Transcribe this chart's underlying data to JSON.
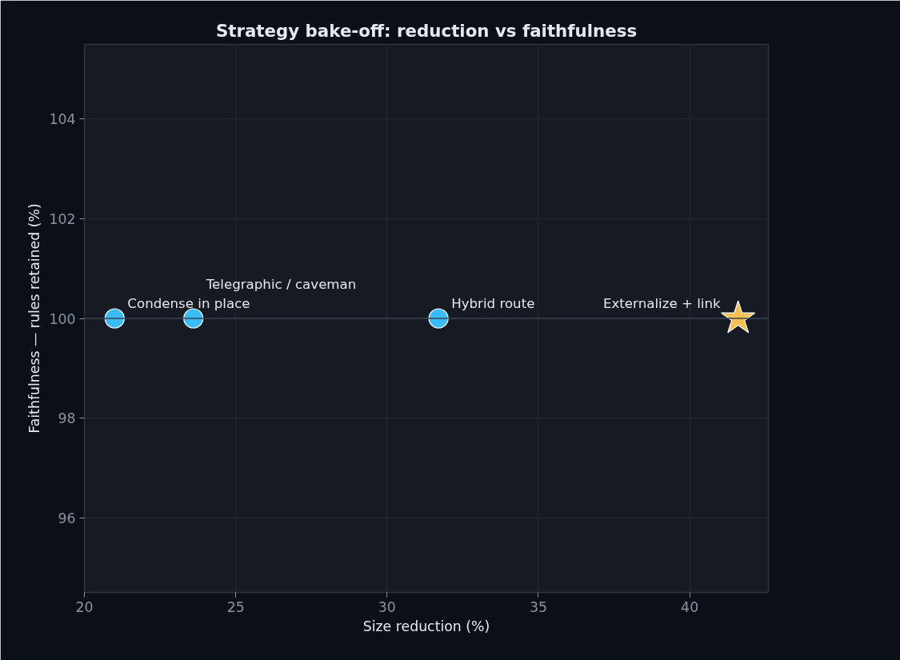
{
  "chart_data": {
    "type": "scatter",
    "title": "Strategy bake-off: reduction vs faithfulness",
    "xlabel": "Size reduction (%)",
    "ylabel": "Faithfulness — rules retained (%)",
    "series": [
      {
        "color": "#38bdf8",
        "marker": "circle",
        "x": [
          21.0,
          23.6,
          31.7
        ],
        "values": [
          100,
          100,
          100
        ]
      },
      {
        "color": "#f5c04f",
        "marker": "star",
        "x": [
          41.6
        ],
        "values": [
          100
        ]
      }
    ],
    "annotations": [
      {
        "text": "Condense in place",
        "x": 21.0,
        "y": 100
      },
      {
        "text": "Telegraphic / caveman",
        "x": 23.6,
        "y": 100
      },
      {
        "text": "Hybrid route",
        "x": 31.7,
        "y": 100
      },
      {
        "text": "Externalize + link",
        "x": 41.6,
        "y": 100
      }
    ],
    "ref_lines": [
      {
        "axis": "y",
        "value": 100,
        "label": null,
        "color": "#3a4150"
      }
    ],
    "xlim": [
      20,
      42.6
    ],
    "ylim": [
      94.5,
      105.5
    ],
    "xticks": [
      20,
      25,
      30,
      35,
      40
    ],
    "yticks": [
      96,
      98,
      100,
      102,
      104
    ],
    "grid": true
  }
}
